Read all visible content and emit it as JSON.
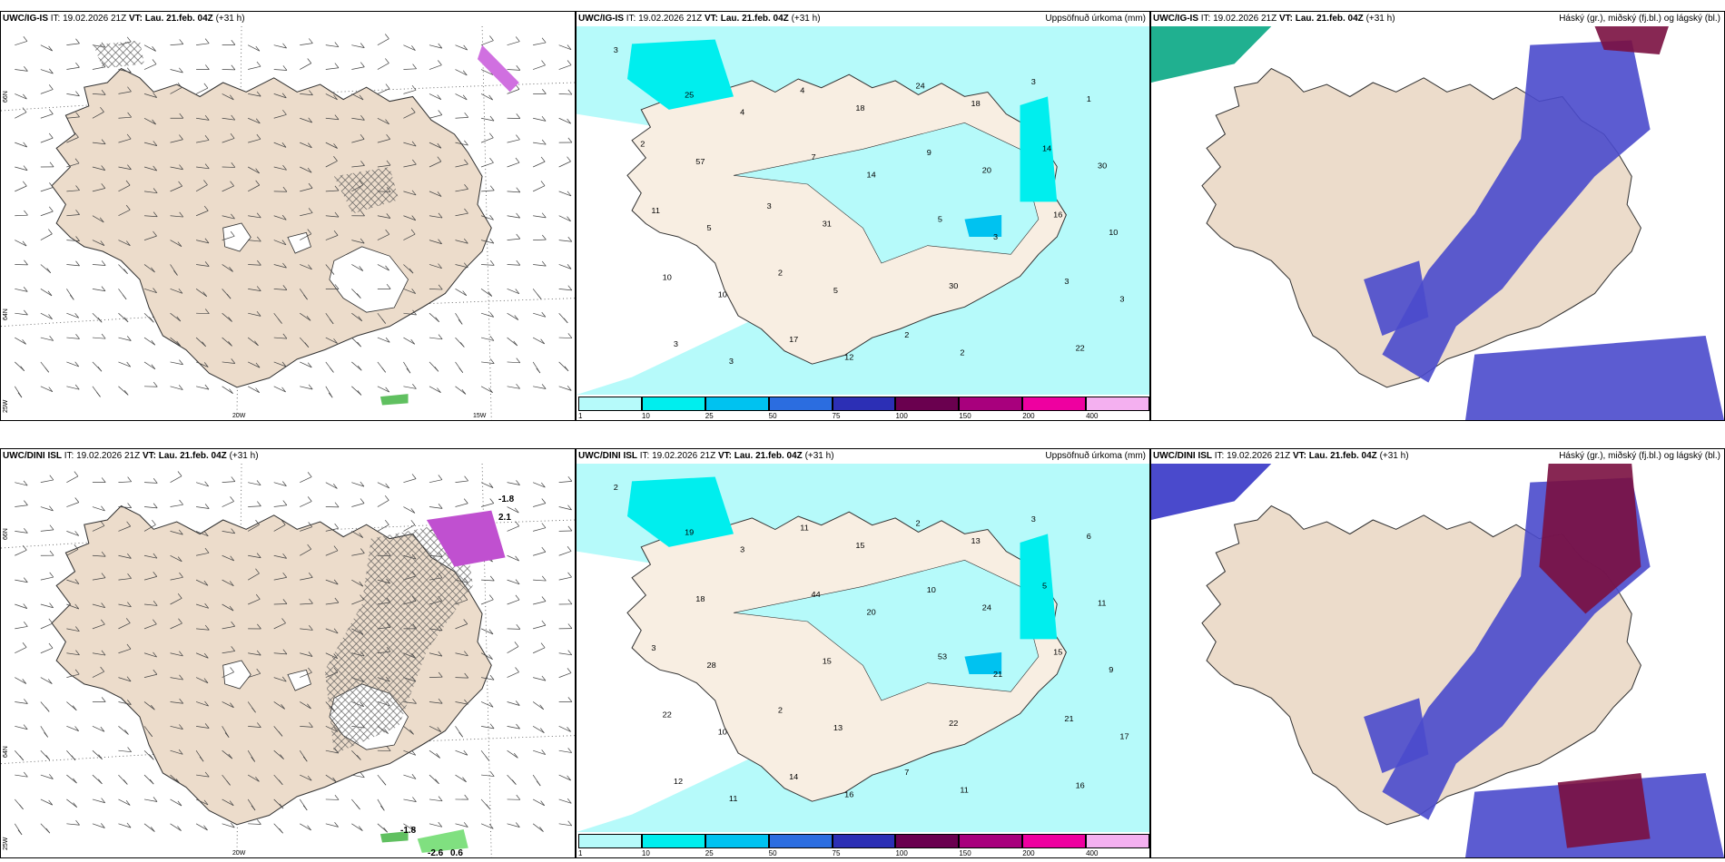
{
  "panels": [
    {
      "model": "UWC/IG-IS",
      "it_label": "IT:",
      "it": "19.02.2026 21Z",
      "vt_label": "VT:",
      "vt": "Lau. 21.feb. 04Z",
      "lead": "(+31 h)",
      "right": ""
    },
    {
      "model": "UWC/IG-IS",
      "it_label": "IT:",
      "it": "19.02.2026 21Z",
      "vt_label": "VT:",
      "vt": "Lau. 21.feb. 04Z",
      "lead": "(+31 h)",
      "right": "Uppsöfnuð úrkoma (mm)"
    },
    {
      "model": "UWC/IG-IS",
      "it_label": "IT:",
      "it": "19.02.2026 21Z",
      "vt_label": "VT:",
      "vt": "Lau. 21.feb. 04Z",
      "lead": "(+31 h)",
      "right": "Háský (gr.), miðský (fj.bl.) og lágský (bl.)"
    },
    {
      "model": "UWC/DINI ISL",
      "it_label": "IT:",
      "it": "19.02.2026 21Z",
      "vt_label": "VT:",
      "vt": "Lau. 21.feb. 04Z",
      "lead": "(+31 h)",
      "right": ""
    },
    {
      "model": "UWC/DINI ISL",
      "it_label": "IT:",
      "it": "19.02.2026 21Z",
      "vt_label": "VT:",
      "vt": "Lau. 21.feb. 04Z",
      "lead": "(+31 h)",
      "right": "Uppsöfnuð úrkoma (mm)"
    },
    {
      "model": "UWC/DINI ISL",
      "it_label": "IT:",
      "it": "19.02.2026 21Z",
      "vt_label": "VT:",
      "vt": "Lau. 21.feb. 04Z",
      "lead": "(+31 h)",
      "right": "Háský (gr.), miðský (fj.bl.) og lágský (bl.)"
    }
  ],
  "axis_labels": {
    "lat66": "66N",
    "lat64": "64N",
    "lon25": "25W",
    "lon20": "20W",
    "lon15": "15W"
  },
  "colorbar": {
    "labels": [
      "1",
      "10",
      "25",
      "50",
      "75",
      "100",
      "150",
      "200",
      "400"
    ],
    "colors": [
      "#b6fafa",
      "#00eeee",
      "#00c2f0",
      "#2b6de0",
      "#2c2fb5",
      "#6a004f",
      "#a8007d",
      "#ee00a0",
      "#f4b0f0"
    ]
  },
  "colors": {
    "land": "#ecdccb",
    "land_precip": "#f8eee2",
    "precip_light": "#b6fafa",
    "cloud_low": "#4a4acc",
    "cloud_mid": "#3aa8ee",
    "cloud_high": "#7a1040"
  },
  "precip_values_top": [
    "3",
    "4",
    "14",
    "3",
    "3",
    "3",
    "18",
    "20",
    "10",
    "10",
    "12",
    "18",
    "30",
    "5",
    "5",
    "2",
    "1",
    "57",
    "31",
    "30",
    "22",
    "25",
    "7",
    "5",
    "3",
    "3",
    "4",
    "9",
    "16",
    "10",
    "17",
    "24",
    "14",
    "11",
    "2",
    "2",
    "3",
    "2",
    "3"
  ],
  "precip_values_bottom": [
    "2",
    "3",
    "20",
    "21",
    "17",
    "11",
    "15",
    "24",
    "9",
    "10",
    "16",
    "13",
    "11",
    "28",
    "13",
    "11",
    "6",
    "18",
    "15",
    "22",
    "16",
    "19",
    "44",
    "53",
    "21",
    "12",
    "11",
    "10",
    "15",
    "22",
    "14",
    "2",
    "5",
    "3",
    "2",
    "7",
    "3"
  ],
  "negative_labels_top": [],
  "negative_labels_bottom": [
    "-2.6",
    "0.6",
    "-1.8",
    "2.1",
    "-1.8"
  ]
}
